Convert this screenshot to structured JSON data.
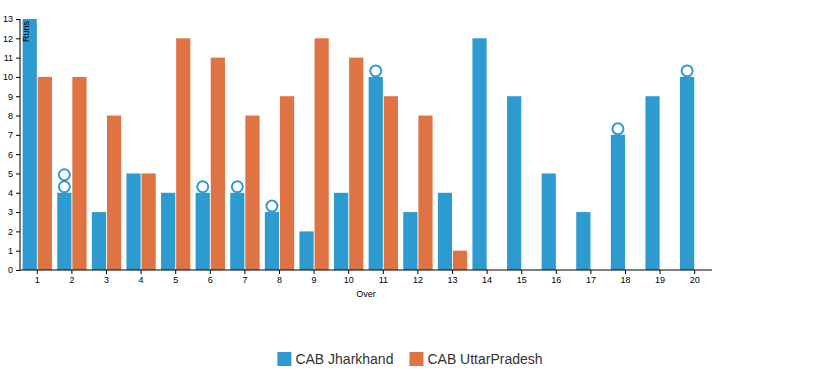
{
  "chart_data": {
    "type": "bar",
    "x_label": "Over",
    "y_label": "Runs",
    "categories": [
      "1",
      "2",
      "3",
      "4",
      "5",
      "6",
      "7",
      "8",
      "9",
      "10",
      "11",
      "12",
      "13",
      "14",
      "15",
      "16",
      "17",
      "18",
      "19",
      "20"
    ],
    "series": [
      {
        "name": "CAB Jharkhand",
        "color": "#2e9bd0",
        "values": [
          13,
          4,
          3,
          5,
          4,
          4,
          4,
          3,
          2,
          4,
          10,
          3,
          4,
          12,
          9,
          5,
          3,
          7,
          9,
          10
        ],
        "wickets": [
          0,
          2,
          0,
          0,
          0,
          1,
          1,
          1,
          0,
          0,
          1,
          0,
          0,
          0,
          0,
          0,
          0,
          1,
          0,
          1
        ]
      },
      {
        "name": "CAB UttarPradesh",
        "color": "#e07344",
        "values": [
          10,
          10,
          8,
          5,
          12,
          11,
          8,
          9,
          12,
          11,
          9,
          8,
          1,
          null,
          null,
          null,
          null,
          null,
          null,
          null
        ]
      }
    ],
    "ylim": [
      0,
      13
    ],
    "yticks": [
      0,
      1,
      2,
      3,
      4,
      5,
      6,
      7,
      8,
      9,
      10,
      11,
      12,
      13
    ],
    "grid": false,
    "legend": "bottom"
  }
}
